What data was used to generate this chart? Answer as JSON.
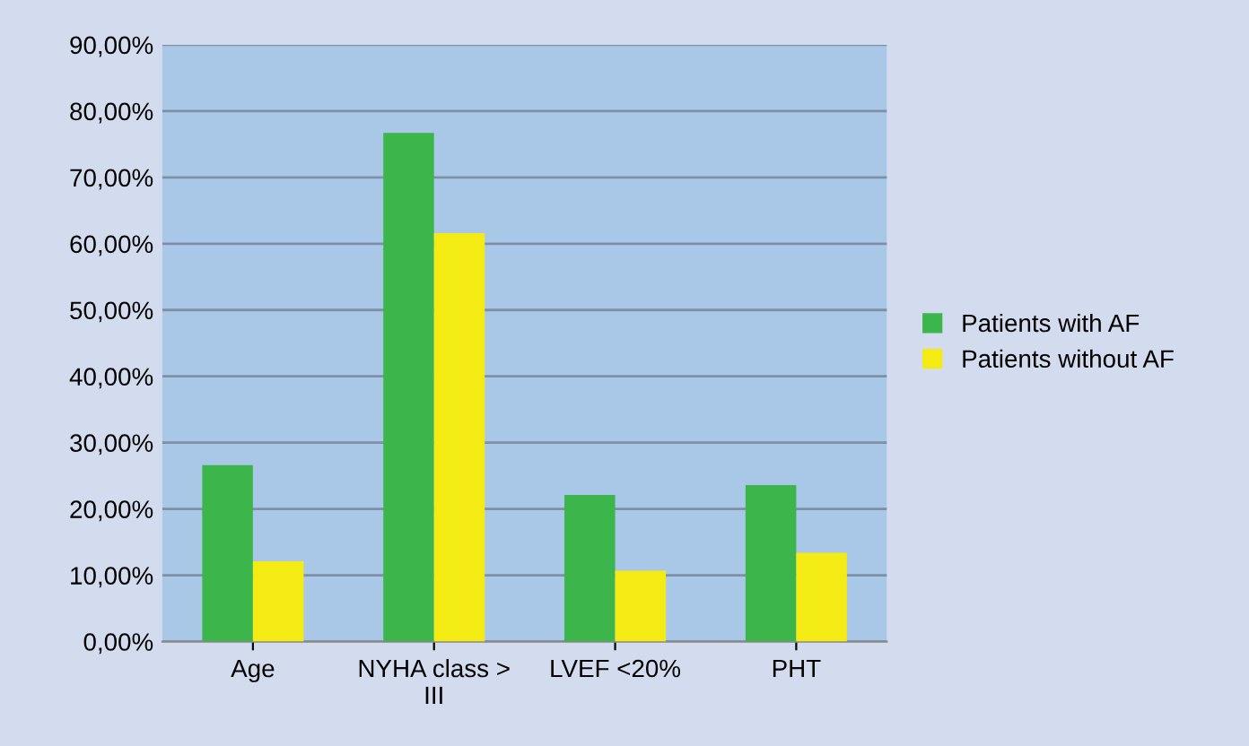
{
  "chart_data": {
    "type": "bar",
    "categories": [
      "Age",
      "NYHA class >\nIII",
      "LVEF <20%",
      "PHT"
    ],
    "series": [
      {
        "name": "Patients with AF",
        "color": "#3cb54a",
        "values": [
          26.6,
          76.7,
          22.1,
          23.6
        ]
      },
      {
        "name": "Patients without AF",
        "color": "#f5eb14",
        "values": [
          12.1,
          61.6,
          10.7,
          13.4
        ]
      }
    ],
    "ylim": [
      0,
      90
    ],
    "yticks": [
      {
        "value": 0,
        "label": "0,00%"
      },
      {
        "value": 10,
        "label": "10,00%"
      },
      {
        "value": 20,
        "label": "20,00%"
      },
      {
        "value": 30,
        "label": "30,00%"
      },
      {
        "value": 40,
        "label": "40,00%"
      },
      {
        "value": 50,
        "label": "50,00%"
      },
      {
        "value": 60,
        "label": "60,00%"
      },
      {
        "value": 70,
        "label": "70,00%"
      },
      {
        "value": 80,
        "label": "80,00%"
      },
      {
        "value": 90,
        "label": "90,00%"
      }
    ],
    "grid": "y",
    "legend": "right"
  }
}
